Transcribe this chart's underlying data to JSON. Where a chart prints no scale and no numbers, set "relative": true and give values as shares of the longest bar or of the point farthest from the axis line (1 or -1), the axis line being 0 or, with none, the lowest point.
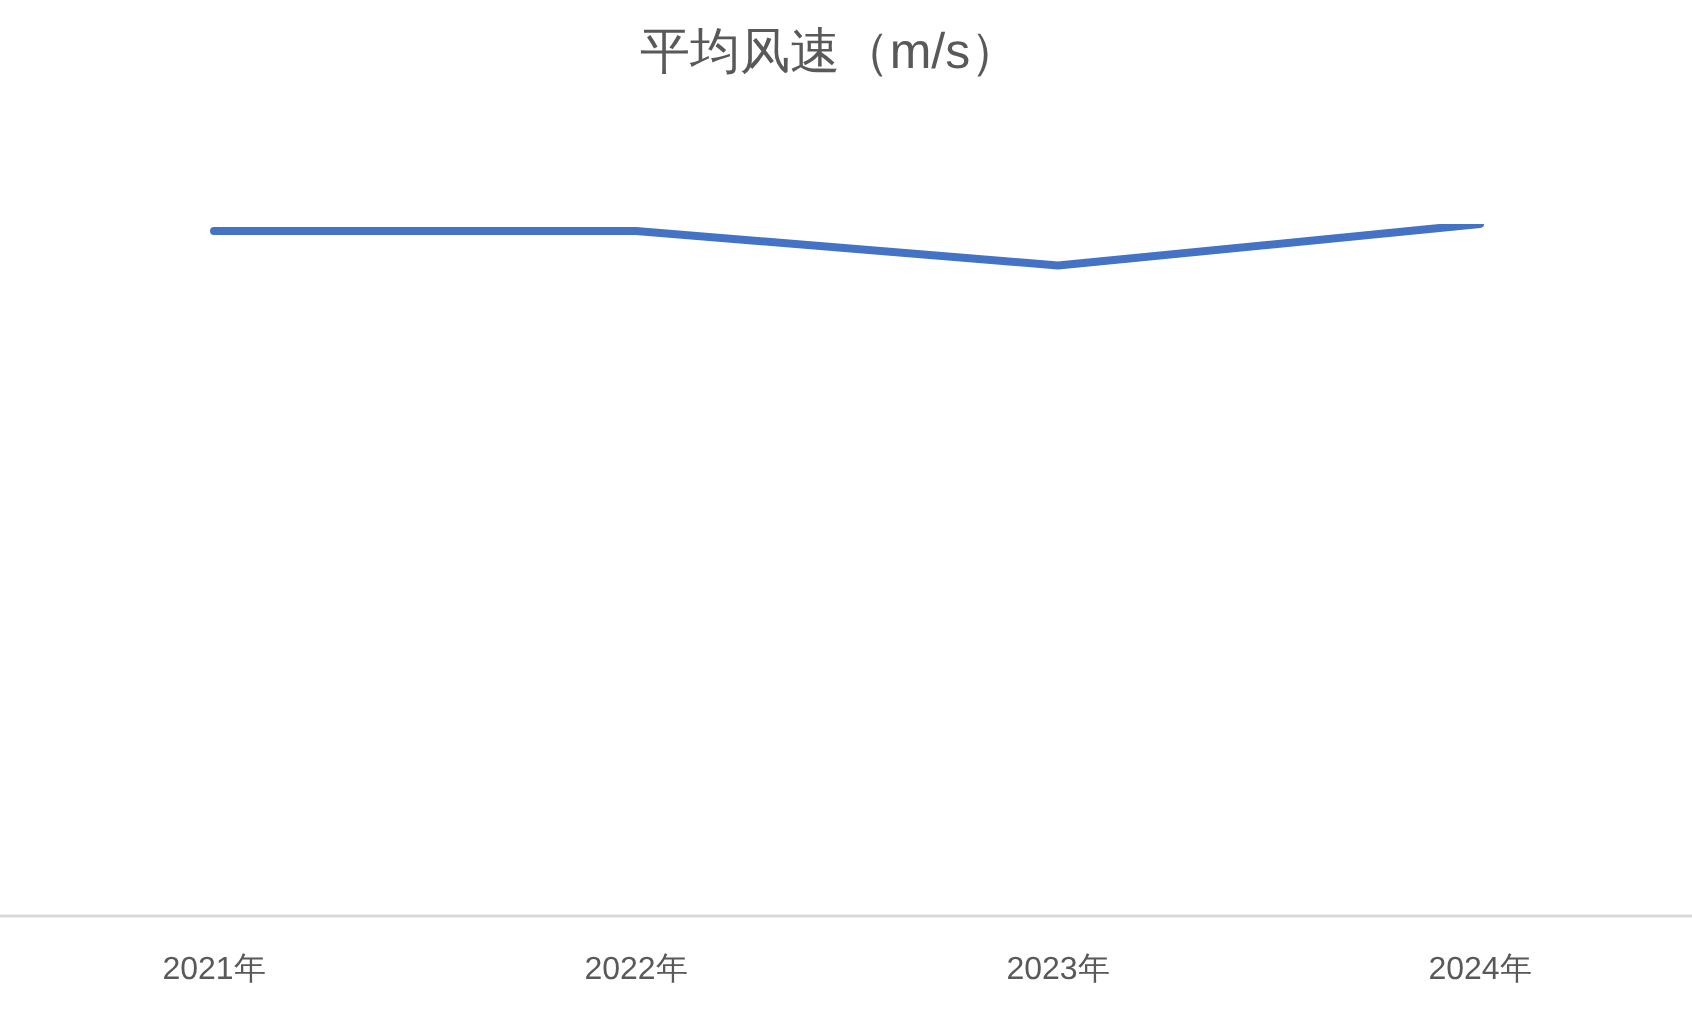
{
  "chart_data": {
    "type": "line",
    "title": "平均风速（m/s）",
    "categories": [
      "2021年",
      "2022年",
      "2023年",
      "2024年"
    ],
    "series": [
      {
        "color": "#4472c4",
        "values": [
          0.99,
          0.99,
          0.94,
          1
        ]
      }
    ],
    "relative": true,
    "marker": "none",
    "line_style": "solid"
  }
}
